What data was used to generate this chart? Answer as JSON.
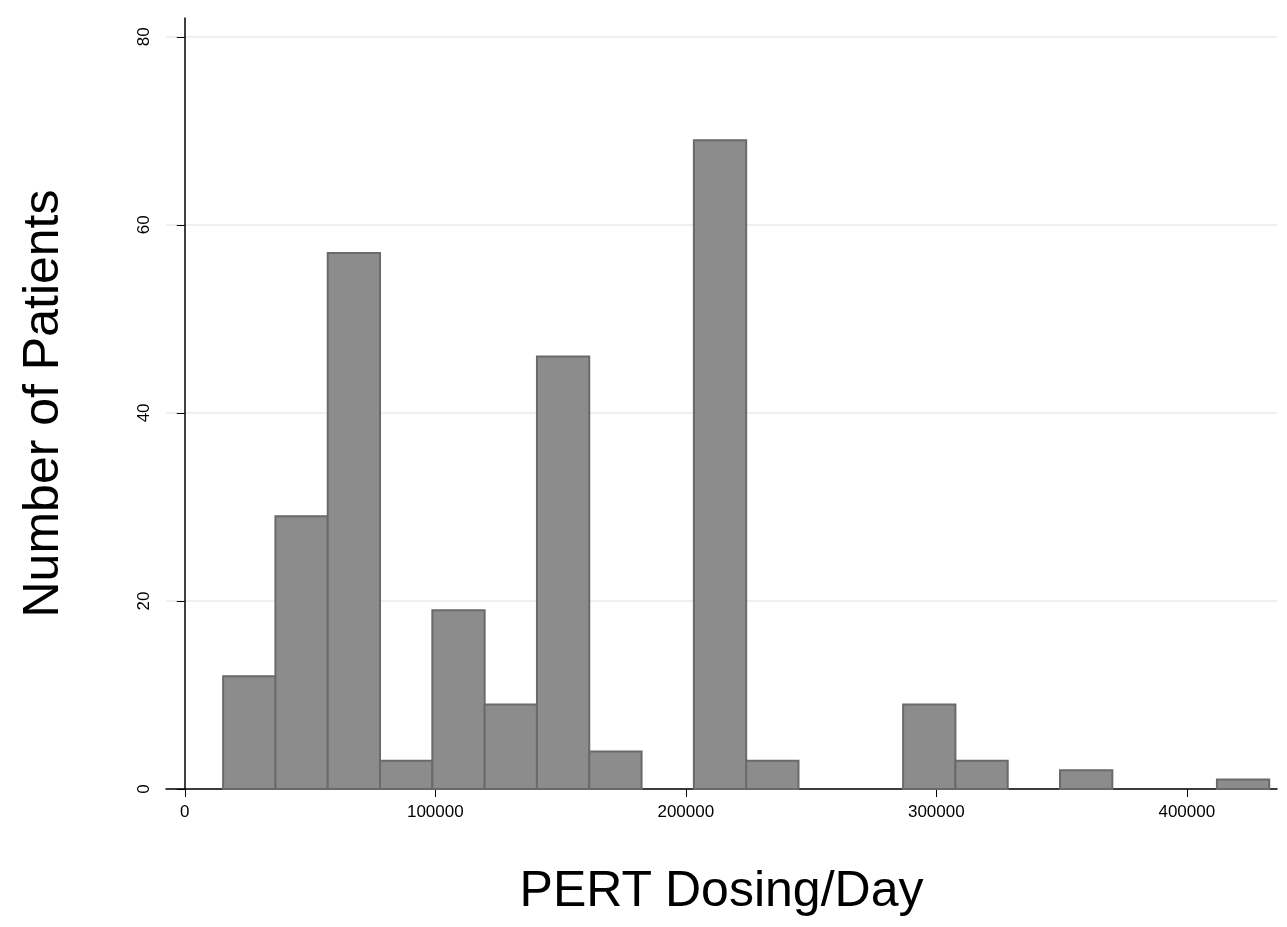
{
  "chart_data": {
    "type": "histogram",
    "xlabel": "PERT Dosing/Day",
    "ylabel": "Number of Patients",
    "bins": [
      15300,
      36180,
      57060,
      77940,
      98820,
      119700,
      140580,
      161460,
      182340,
      203220,
      224100,
      244980,
      265860,
      286740,
      307620,
      328500,
      349380,
      370260,
      391140,
      412020,
      432900
    ],
    "values": [
      12,
      29,
      57,
      3,
      19,
      9,
      46,
      4,
      0,
      69,
      3,
      0,
      0,
      9,
      3,
      0,
      2,
      0,
      0,
      1
    ],
    "color": "#8c8c8c",
    "xlim": [
      -7500,
      436000
    ],
    "xticks": [
      0,
      100000,
      200000,
      300000,
      400000
    ],
    "ylim": [
      0,
      82
    ],
    "yticks": [
      0,
      20,
      40,
      60,
      80
    ],
    "grid": "y"
  }
}
